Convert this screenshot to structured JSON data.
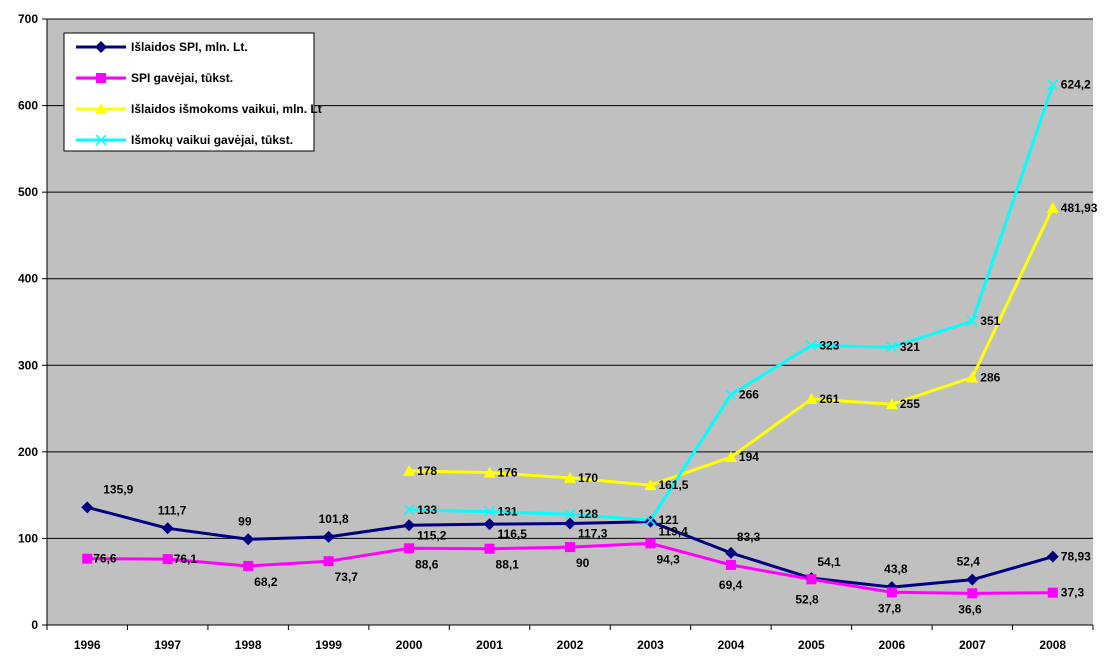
{
  "chart_data": {
    "type": "line",
    "title": "",
    "xlabel": "",
    "ylabel": "",
    "categories": [
      "1996",
      "1997",
      "1998",
      "1999",
      "2000",
      "2001",
      "2002",
      "2003",
      "2004",
      "2005",
      "2006",
      "2007",
      "2008"
    ],
    "ylim": [
      0,
      700
    ],
    "yticks": [
      0,
      100,
      200,
      300,
      400,
      500,
      600,
      700
    ],
    "ytick_labels": [
      "0",
      "100",
      "200",
      "300",
      "400",
      "500",
      "600",
      "700"
    ],
    "grid": "horizontal",
    "plot_background": "#c0c0c0",
    "legend_placement": "top-left",
    "series": [
      {
        "name": "Išlaidos SPI, mln. Lt.",
        "color": "#000080",
        "marker": "diamond",
        "values": [
          135.9,
          111.7,
          99,
          101.8,
          115.2,
          116.5,
          117.3,
          119.4,
          83.3,
          54.1,
          43.8,
          52.4,
          78.93
        ],
        "labels": [
          "135,9",
          "111,7",
          "99",
          "101,8",
          "115,2",
          "116,5",
          "117,3",
          "119,4",
          "83,3",
          "54,1",
          "43,8",
          "52,4",
          "78,93"
        ]
      },
      {
        "name": "SPI gavėjai, tūkst.",
        "color": "#ff00ff",
        "marker": "square",
        "values": [
          76.6,
          76.1,
          68.2,
          73.7,
          88.6,
          88.1,
          90,
          94.3,
          69.4,
          52.8,
          37.8,
          36.6,
          37.3
        ],
        "labels": [
          "76,6",
          "76,1",
          "68,2",
          "73,7",
          "88,6",
          "88,1",
          "90",
          "94,3",
          "69,4",
          "52,8",
          "37,8",
          "36,6",
          "37,3"
        ]
      },
      {
        "name": "Išlaidos išmokoms vaikui, mln. Lt",
        "color": "#ffff00",
        "marker": "triangle",
        "values": [
          null,
          null,
          null,
          null,
          178,
          176,
          170,
          161.5,
          194,
          261,
          255,
          286,
          481.93
        ],
        "labels": [
          "",
          "",
          "",
          "",
          "178",
          "176",
          "170",
          "161,5",
          "194",
          "261",
          "255",
          "286",
          "481,93"
        ]
      },
      {
        "name": "Išmokų vaikui gavėjai, tūkst.",
        "color": "#00ffff",
        "marker": "x",
        "values": [
          null,
          null,
          null,
          null,
          133,
          131,
          128,
          121,
          266,
          323,
          321,
          351,
          624.2
        ],
        "labels": [
          "",
          "",
          "",
          "",
          "133",
          "131",
          "128",
          "121",
          "266",
          "323",
          "321",
          "351",
          "624,2"
        ]
      }
    ]
  }
}
